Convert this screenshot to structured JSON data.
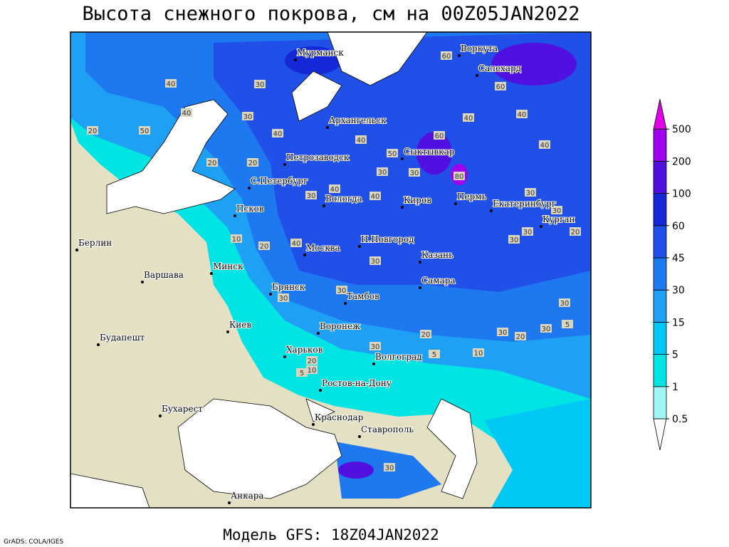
{
  "title": "Высота снежного покрова, см на 00Z05JAN2022",
  "footer": "Модель GFS: 18Z04JAN2022",
  "credit": "GrADS: COLA/IGES",
  "legend": {
    "levels": [
      0.5,
      1,
      5,
      15,
      30,
      45,
      60,
      100,
      200,
      500
    ],
    "colors": [
      "#ffffff",
      "#a0f4f4",
      "#00e4e4",
      "#00c8f4",
      "#1ea0f4",
      "#1e78f0",
      "#2050e8",
      "#1428d8",
      "#5010e0",
      "#a000f0",
      "#e000e8"
    ]
  },
  "cities": [
    {
      "name": "Мурманск"
    },
    {
      "name": "Архангельск"
    },
    {
      "name": "Воркута"
    },
    {
      "name": "Салехард"
    },
    {
      "name": "Петрозаводск"
    },
    {
      "name": "С.Петербург"
    },
    {
      "name": "Сыктывкар"
    },
    {
      "name": "Псков"
    },
    {
      "name": "Вологда"
    },
    {
      "name": "Киров"
    },
    {
      "name": "Пермь"
    },
    {
      "name": "Екатеринбург"
    },
    {
      "name": "Курган"
    },
    {
      "name": "Берлин"
    },
    {
      "name": "Варшава"
    },
    {
      "name": "Минск"
    },
    {
      "name": "Москва"
    },
    {
      "name": "Н.Новгород"
    },
    {
      "name": "Казань"
    },
    {
      "name": "Брянск"
    },
    {
      "name": "Тамбов"
    },
    {
      "name": "Самара"
    },
    {
      "name": "Киев"
    },
    {
      "name": "Воронеж"
    },
    {
      "name": "Будапешт"
    },
    {
      "name": "Харьков"
    },
    {
      "name": "Волгоград"
    },
    {
      "name": "Ростов-на-Дону"
    },
    {
      "name": "Бухарест"
    },
    {
      "name": "Краснодар"
    },
    {
      "name": "Ставрополь"
    },
    {
      "name": "Анкара"
    }
  ],
  "contour_labels": [
    40,
    30,
    40,
    50,
    20,
    30,
    40,
    20,
    20,
    30,
    40,
    40,
    40,
    60,
    80,
    40,
    40,
    40,
    30,
    30,
    20,
    30,
    30,
    10,
    20,
    40,
    30,
    30,
    30,
    30,
    5,
    30,
    20,
    30,
    20,
    10,
    30,
    20,
    10,
    5,
    5,
    60,
    60,
    30,
    30,
    50,
    30
  ]
}
